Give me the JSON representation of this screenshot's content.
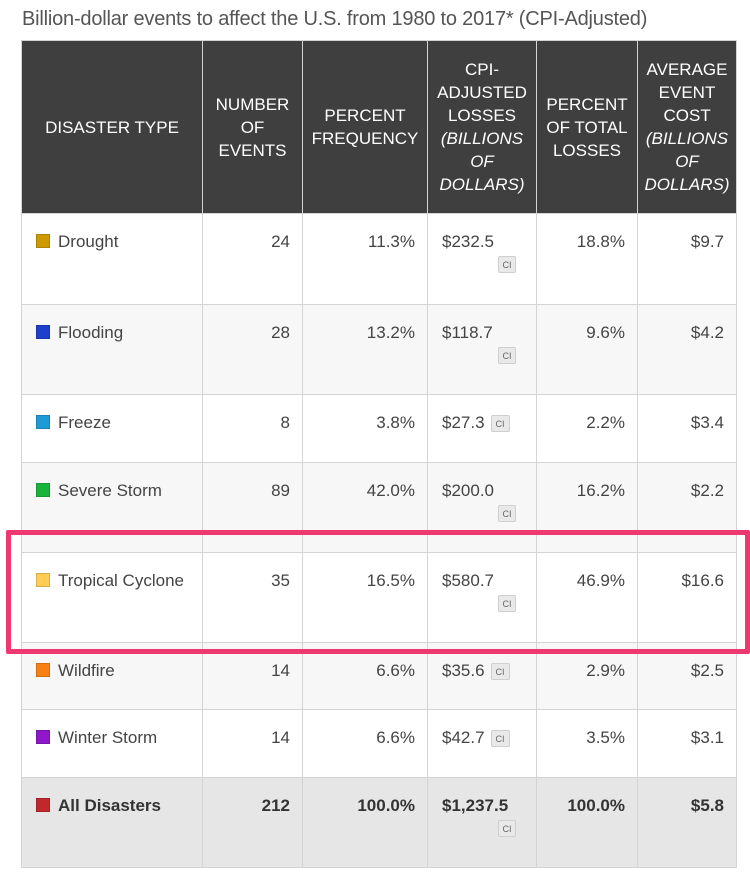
{
  "title": "Billion-dollar events to affect the U.S. from 1980 to 2017* (CPI-Adjusted)",
  "headers": {
    "type": "DISASTER TYPE",
    "events": "NUMBER OF EVENTS",
    "freq": "PERCENT FREQUENCY",
    "losses_main": "CPI-ADJUSTED LOSSES",
    "losses_unit": "(BILLIONS OF DOLLARS)",
    "pct_losses": "PERCENT OF TOTAL LOSSES",
    "avg_main": "AVERAGE EVENT COST",
    "avg_unit": "(BILLIONS OF DOLLARS)"
  },
  "ci_label": "CI",
  "rows": [
    {
      "type": "Drought",
      "color": "#cc9900",
      "events": "24",
      "freq": "11.3%",
      "losses": "$232.5",
      "pct_losses": "18.8%",
      "avg": "$9.7"
    },
    {
      "type": "Flooding",
      "color": "#1c3fcc",
      "events": "28",
      "freq": "13.2%",
      "losses": "$118.7",
      "pct_losses": "9.6%",
      "avg": "$4.2"
    },
    {
      "type": "Freeze",
      "color": "#1e9bd6",
      "events": "8",
      "freq": "3.8%",
      "losses": "$27.3",
      "pct_losses": "2.2%",
      "avg": "$3.4"
    },
    {
      "type": "Severe Storm",
      "color": "#17b33a",
      "events": "89",
      "freq": "42.0%",
      "losses": "$200.0",
      "pct_losses": "16.2%",
      "avg": "$2.2"
    },
    {
      "type": "Tropical Cyclone",
      "color": "#ffcc55",
      "events": "35",
      "freq": "16.5%",
      "losses": "$580.7",
      "pct_losses": "46.9%",
      "avg": "$16.6"
    },
    {
      "type": "Wildfire",
      "color": "#f77f14",
      "events": "14",
      "freq": "6.6%",
      "losses": "$35.6",
      "pct_losses": "2.9%",
      "avg": "$2.5"
    },
    {
      "type": "Winter Storm",
      "color": "#8e17c9",
      "events": "14",
      "freq": "6.6%",
      "losses": "$42.7",
      "pct_losses": "3.5%",
      "avg": "$3.1"
    }
  ],
  "total": {
    "type": "All Disasters",
    "color": "#c0282d",
    "events": "212",
    "freq": "100.0%",
    "losses": "$1,237.5",
    "pct_losses": "100.0%",
    "avg": "$5.8"
  },
  "highlight_color": "#ee3871",
  "highlighted_row": "Tropical Cyclone"
}
